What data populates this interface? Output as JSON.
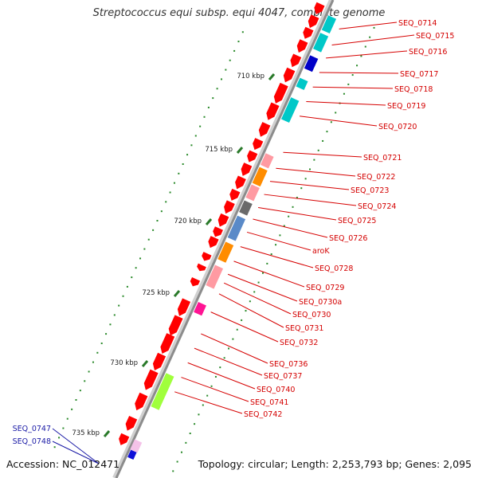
{
  "title": "Streptococcus equi subsp. equi 4047, complete genome",
  "footer": {
    "accession_label": "Accession: ",
    "accession": "NC_012471",
    "topology_label": "Topology: ",
    "topology": "circular",
    "length_label": "; Length: ",
    "length": "2,253,793 bp",
    "genes_label": "; Genes: ",
    "genes": "2,095"
  },
  "colors": {
    "backbone": "#8c8c8c",
    "cds": "#ff0000",
    "label_right": "#d40000",
    "label_left": "#1a1aa6",
    "tick": "#2a7a2a",
    "gc_dots": "#2a8a2a"
  },
  "ticks": [
    {
      "label": "710 kbp",
      "kbp": 710
    },
    {
      "label": "715 kbp",
      "kbp": 715
    },
    {
      "label": "720 kbp",
      "kbp": 720
    },
    {
      "label": "725 kbp",
      "kbp": 725
    },
    {
      "label": "730 kbp",
      "kbp": 730
    },
    {
      "label": "735 kbp",
      "kbp": 735
    }
  ],
  "right_labels": [
    "SEQ_0714",
    "SEQ_0715",
    "SEQ_0716",
    "SEQ_0717",
    "SEQ_0718",
    "SEQ_0719",
    "SEQ_0720",
    "SEQ_0721",
    "SEQ_0722",
    "SEQ_0723",
    "SEQ_0724",
    "SEQ_0725",
    "SEQ_0726",
    "aroK",
    "SEQ_0728",
    "SEQ_0729",
    "SEQ_0730a",
    "SEQ_0730",
    "SEQ_0731",
    "SEQ_0732",
    "SEQ_0736",
    "SEQ_0737",
    "SEQ_0740",
    "SEQ_0741",
    "SEQ_0742"
  ],
  "left_labels": [
    "SEQ_0747",
    "SEQ_0748"
  ],
  "cog_colors": [
    "#00c8c8",
    "#ff8c00",
    "#ff9aa2",
    "#6a6a6a",
    "#5a8ac8",
    "#ff1493",
    "#a0ff3c",
    "#0000c8",
    "#ff00ff"
  ]
}
